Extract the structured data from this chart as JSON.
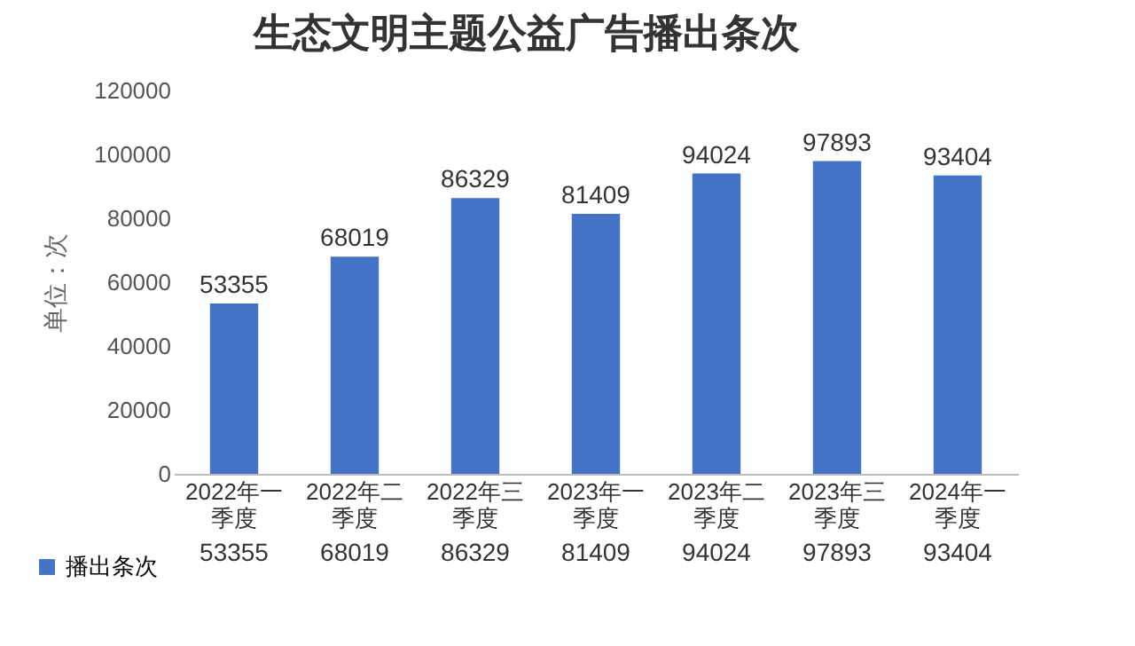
{
  "chart_data": {
    "type": "bar",
    "title": "生态文明主题公益广告播出条次",
    "ylabel": "单位：次",
    "categories": [
      "2022年一季度",
      "2022年二季度",
      "2022年三季度",
      "2023年一季度",
      "2023年二季度",
      "2023年三季度",
      "2024年一季度"
    ],
    "series": [
      {
        "name": "播出条次",
        "color": "#4472c4",
        "values": [
          53355,
          68019,
          86329,
          81409,
          94024,
          97893,
          93404
        ]
      }
    ],
    "ylim": [
      0,
      120000
    ],
    "yticks": [
      0,
      20000,
      40000,
      60000,
      80000,
      100000,
      120000
    ],
    "grid": false,
    "data_labels": true,
    "legend": "bottom left",
    "annotations": [
      {
        "text": "53355",
        "x": "2022年一季度",
        "y": 53355
      },
      {
        "text": "68019",
        "x": "2022年二季度",
        "y": 68019
      },
      {
        "text": "86329",
        "x": "2022年三季度",
        "y": 86329
      },
      {
        "text": "81409",
        "x": "2023年一季度",
        "y": 81409
      },
      {
        "text": "94024",
        "x": "2023年二季度",
        "y": 94024
      },
      {
        "text": "97893",
        "x": "2023年三季度",
        "y": 97893
      },
      {
        "text": "93404",
        "x": "2024年一季度",
        "y": 93404
      }
    ]
  }
}
